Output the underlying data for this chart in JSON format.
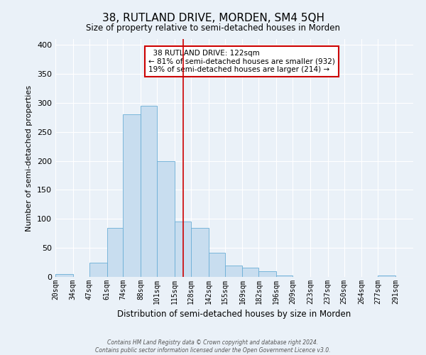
{
  "title": "38, RUTLAND DRIVE, MORDEN, SM4 5QH",
  "subtitle": "Size of property relative to semi-detached houses in Morden",
  "xlabel": "Distribution of semi-detached houses by size in Morden",
  "ylabel": "Number of semi-detached properties",
  "bar_color": "#c8ddef",
  "bar_edge_color": "#6aaed6",
  "background_color": "#eaf1f8",
  "grid_color": "#ffffff",
  "bin_labels": [
    "20sqm",
    "34sqm",
    "47sqm",
    "61sqm",
    "74sqm",
    "88sqm",
    "101sqm",
    "115sqm",
    "128sqm",
    "142sqm",
    "155sqm",
    "169sqm",
    "182sqm",
    "196sqm",
    "209sqm",
    "223sqm",
    "237sqm",
    "250sqm",
    "264sqm",
    "277sqm",
    "291sqm"
  ],
  "bin_edges": [
    20,
    34,
    47,
    61,
    74,
    88,
    101,
    115,
    128,
    142,
    155,
    169,
    182,
    196,
    209,
    223,
    237,
    250,
    264,
    277,
    291
  ],
  "bar_heights": [
    5,
    0,
    25,
    84,
    280,
    295,
    200,
    96,
    84,
    42,
    20,
    16,
    10,
    3,
    0,
    0,
    0,
    0,
    0,
    2,
    0
  ],
  "vline_x": 122,
  "vline_color": "#cc0000",
  "ylim": [
    0,
    410
  ],
  "yticks": [
    0,
    50,
    100,
    150,
    200,
    250,
    300,
    350,
    400
  ],
  "annotation_title": "38 RUTLAND DRIVE: 122sqm",
  "annotation_line1": "← 81% of semi-detached houses are smaller (932)",
  "annotation_line2": "19% of semi-detached houses are larger (214) →",
  "annotation_box_color": "#ffffff",
  "annotation_box_edge": "#cc0000",
  "footer1": "Contains HM Land Registry data © Crown copyright and database right 2024.",
  "footer2": "Contains public sector information licensed under the Open Government Licence v3.0."
}
